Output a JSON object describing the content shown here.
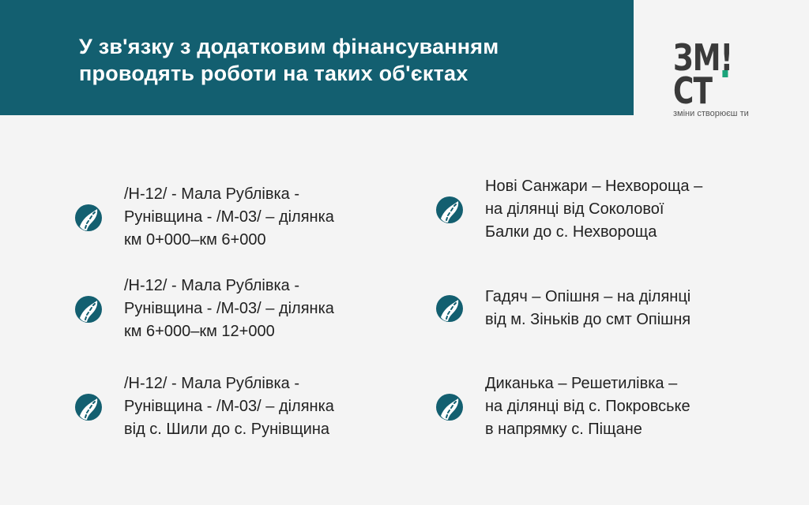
{
  "header": {
    "title_line1": "У зв'язку з додатковим фінансуванням",
    "title_line2": "проводять роботи на таких об'єктах"
  },
  "logo": {
    "text": "ЗМІСТ",
    "tagline": "зміни створюєш ти",
    "accent": "#1aa37a"
  },
  "colors": {
    "header": "#135f70",
    "icon": "#135f70"
  },
  "items": [
    {
      "icon": "road-icon",
      "lines": [
        "/Н-12/ - Мала Рублівка -",
        "Рунівщина - /М-03/ – ділянка",
        "км 0+000–км 6+000"
      ]
    },
    {
      "icon": "road-icon",
      "lines": [
        "/Н-12/ - Мала Рублівка -",
        "Рунівщина - /М-03/ – ділянка",
        "км 6+000–км 12+000"
      ]
    },
    {
      "icon": "road-icon",
      "lines": [
        "/Н-12/ - Мала Рублівка -",
        "Рунівщина - /М-03/ – ділянка",
        "від с. Шили до с. Рунівщина"
      ]
    },
    {
      "icon": "road-icon",
      "lines": [
        "Нові Санжари – Нехвороща –",
        "на ділянці від Соколової",
        "Балки до с. Нехвороща"
      ]
    },
    {
      "icon": "road-icon",
      "lines": [
        "Гадяч – Опішня – на ділянці",
        "від м. Зіньків до смт Опішня"
      ]
    },
    {
      "icon": "road-icon",
      "lines": [
        "Диканька – Решетилівка –",
        "на ділянці від с. Покровське",
        "в напрямку с. Піщане"
      ]
    }
  ]
}
